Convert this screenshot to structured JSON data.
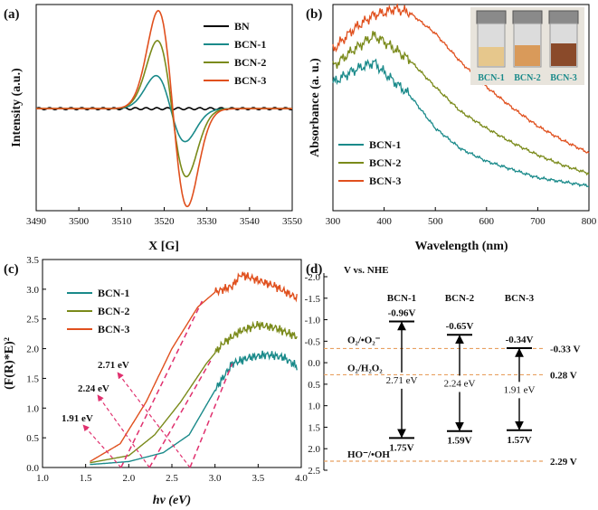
{
  "chart_data": [
    {
      "panel": "(a)",
      "type": "line",
      "xlabel": "X [G]",
      "ylabel": "Intensity (a.u.)",
      "xlim": [
        3490,
        3550
      ],
      "xticks": [
        "3490",
        "3500",
        "3510",
        "3520",
        "3530",
        "3540",
        "3550"
      ],
      "legend": "top-right",
      "series": [
        {
          "name": "BN",
          "color": "#000000",
          "center": 3519.5,
          "amp": 0.02
        },
        {
          "name": "BCN-1",
          "color": "#1a8a8a",
          "center": 3521.5,
          "amp": 0.32
        },
        {
          "name": "BCN-2",
          "color": "#7a8a1a",
          "center": 3521.8,
          "amp": 0.66
        },
        {
          "name": "BCN-3",
          "color": "#e0501e",
          "center": 3522.0,
          "amp": 0.95
        }
      ]
    },
    {
      "panel": "(b)",
      "type": "line",
      "xlabel": "Wavelength (nm)",
      "ylabel": "Absorbance (a. u.)",
      "xlim": [
        300,
        800
      ],
      "xticks": [
        "300",
        "400",
        "500",
        "600",
        "700",
        "800"
      ],
      "legend": "bottom-left",
      "inset_labels": [
        "BCN-1",
        "BCN-2",
        "BCN-3"
      ],
      "series": [
        {
          "name": "BCN-1",
          "color": "#1a8a8a",
          "x": [
            300,
            340,
            380,
            400,
            450,
            500,
            550,
            600,
            650,
            700,
            750,
            800
          ],
          "y": [
            0.62,
            0.68,
            0.72,
            0.67,
            0.56,
            0.4,
            0.3,
            0.24,
            0.2,
            0.16,
            0.14,
            0.12
          ]
        },
        {
          "name": "BCN-2",
          "color": "#7a8a1a",
          "x": [
            300,
            340,
            380,
            400,
            450,
            500,
            550,
            600,
            650,
            700,
            750,
            800
          ],
          "y": [
            0.7,
            0.78,
            0.85,
            0.82,
            0.73,
            0.6,
            0.48,
            0.4,
            0.33,
            0.27,
            0.22,
            0.18
          ]
        },
        {
          "name": "BCN-3",
          "color": "#e0501e",
          "x": [
            300,
            340,
            380,
            400,
            420,
            450,
            500,
            550,
            600,
            650,
            700,
            750,
            800
          ],
          "y": [
            0.78,
            0.88,
            0.95,
            0.96,
            0.98,
            0.96,
            0.86,
            0.72,
            0.6,
            0.5,
            0.41,
            0.34,
            0.28
          ]
        }
      ]
    },
    {
      "panel": "(c)",
      "type": "line",
      "xlabel": "hν (eV)",
      "ylabel": "(F(R)*E)²",
      "xlim": [
        1.0,
        4.0
      ],
      "ylim": [
        0.0,
        3.5
      ],
      "xticks": [
        "1.0",
        "1.5",
        "2.0",
        "2.5",
        "3.0",
        "3.5",
        "4.0"
      ],
      "yticks": [
        "0.0",
        "0.5",
        "1.0",
        "1.5",
        "2.0",
        "2.5",
        "3.0",
        "3.5"
      ],
      "legend": "top-left",
      "annotations": [
        "2.71 eV",
        "2.24 eV",
        "1.91 eV"
      ],
      "series": [
        {
          "name": "BCN-1",
          "color": "#1a8a8a",
          "x": [
            1.55,
            2.0,
            2.4,
            2.7,
            3.0,
            3.2,
            3.4,
            3.6,
            3.8,
            3.95
          ],
          "y": [
            0.05,
            0.1,
            0.25,
            0.55,
            1.3,
            1.75,
            1.85,
            1.9,
            1.85,
            1.7
          ]
        },
        {
          "name": "BCN-2",
          "color": "#7a8a1a",
          "x": [
            1.55,
            2.0,
            2.3,
            2.6,
            2.9,
            3.1,
            3.3,
            3.5,
            3.7,
            3.95
          ],
          "y": [
            0.08,
            0.2,
            0.55,
            1.1,
            1.75,
            2.1,
            2.3,
            2.4,
            2.35,
            2.2
          ]
        },
        {
          "name": "BCN-3",
          "color": "#e0501e",
          "x": [
            1.55,
            1.9,
            2.2,
            2.5,
            2.8,
            3.0,
            3.2,
            3.3,
            3.5,
            3.7,
            3.95
          ],
          "y": [
            0.1,
            0.4,
            1.1,
            2.0,
            2.7,
            2.95,
            3.05,
            3.25,
            3.15,
            3.05,
            2.85
          ]
        }
      ]
    },
    {
      "panel": "(d)",
      "type": "diagram",
      "title": "V vs. NHE",
      "ylim": [
        2.5,
        -2.0
      ],
      "yticks": [
        "-2.0",
        "-1.5",
        "-1.0",
        "-0.5",
        "0.0",
        "0.5",
        "1.0",
        "1.5",
        "2.0",
        "2.5"
      ],
      "columns": [
        "BCN-1",
        "BCN-2",
        "BCN-3"
      ],
      "cb": [
        -0.96,
        -0.65,
        -0.34
      ],
      "vb": [
        1.75,
        1.59,
        1.57
      ],
      "cb_labels": [
        "-0.96V",
        "-0.65V",
        "-0.34V"
      ],
      "vb_labels": [
        "1.75V",
        "1.59V",
        "1.57V"
      ],
      "gaps": [
        "2.71 eV",
        "2.24 eV",
        "1.91 eV"
      ],
      "refs": [
        {
          "value": -0.33,
          "label": "-0.33 V",
          "name": "O₂/•O₂⁻"
        },
        {
          "value": 0.28,
          "label": "0.28 V",
          "name": "O₂/H₂O₂"
        },
        {
          "value": 2.29,
          "label": "2.29 V",
          "name": "HO⁻/•OH"
        }
      ]
    }
  ],
  "panel_labels": [
    "(a)",
    "(b)",
    "(c)",
    "(d)"
  ],
  "colors": {
    "bn": "#000000",
    "bcn1": "#1a8a8a",
    "bcn2": "#7a8a1a",
    "bcn3": "#e0501e",
    "dash": "#e0306e",
    "ref": "#e8a060"
  }
}
